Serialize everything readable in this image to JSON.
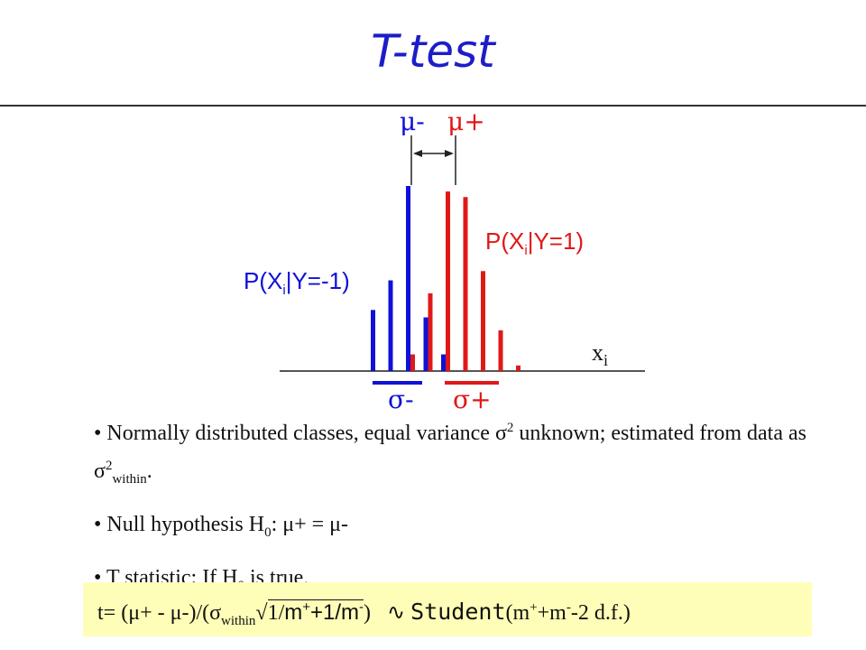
{
  "slide": {
    "title": "T-test"
  },
  "diagram": {
    "mu_minus": "μ-",
    "mu_plus": "μ+",
    "sigma_minus": "σ-",
    "sigma_plus": "σ+",
    "x_label": "x",
    "x_label_sub": "i",
    "neg_dist_label": {
      "pre": "P(X",
      "sub": "i",
      "post": "|Y=-1)"
    },
    "pos_dist_label": {
      "pre": "P(X",
      "sub": "i",
      "post": "|Y=1)"
    },
    "colors": {
      "negative": "#1010d8",
      "positive": "#e01818"
    },
    "neg_bar_levels": [
      0.33,
      0.49,
      1.0,
      0.29,
      0.09
    ],
    "pos_bar_levels": [
      0.09,
      0.42,
      0.97,
      0.94,
      0.54,
      0.22,
      0.03
    ]
  },
  "bullets": {
    "b1": {
      "text_a": "Normally distributed classes, equal variance ",
      "sym_a": "σ",
      "sup_a": "2",
      "text_b": " unknown; estimated from data as ",
      "sym_b": "σ",
      "sup_b": "2",
      "sub_b": "within",
      "text_c": "."
    },
    "b2": {
      "text": "Null hypothesis H",
      "sub": "0",
      "eq": ": μ+ = μ-"
    },
    "b3": {
      "text": "T statistic:  If H",
      "sub": "0",
      "post": " is true,"
    }
  },
  "formula": {
    "lhs": "t= (μ+ - μ-)/(σ",
    "within": "within",
    "root": "√",
    "one_over": "1/",
    "m1": "m",
    "sup1": "+",
    "plus1": "+1/m",
    "sup2": "-",
    "close": ")",
    "dist": "∿",
    "student": "Student",
    "args_open": "(m",
    "sup3": "+",
    "args_mid": "+m",
    "sup4": "-",
    "args_end": "-2 d.f.)"
  }
}
